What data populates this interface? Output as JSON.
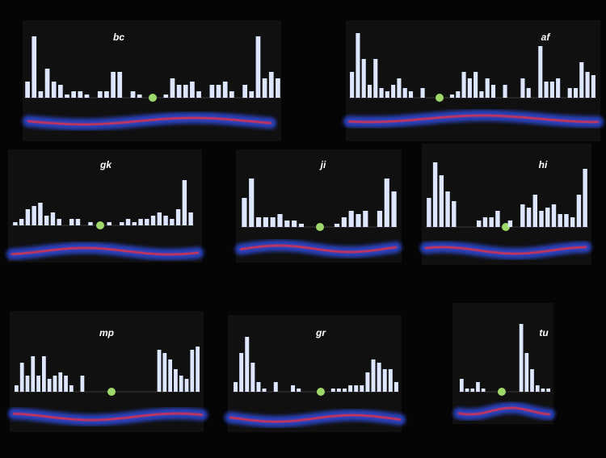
{
  "chart_data": [
    {
      "type": "bar",
      "title": "bc",
      "color": "#dde6ff",
      "values": [
        2.5,
        9.5,
        1,
        4.5,
        2.5,
        2,
        0.5,
        1,
        1,
        0.5,
        0,
        1,
        1,
        4,
        4,
        0,
        1,
        0.5,
        0,
        0,
        0,
        0.5,
        3,
        2,
        2,
        2.5,
        1,
        0,
        2,
        2,
        2.5,
        1,
        0,
        2,
        1,
        9.5,
        3,
        4,
        3
      ]
    },
    {
      "type": "bar",
      "title": "af",
      "color": "#dde6ff",
      "values": [
        4,
        10,
        6,
        2,
        6,
        1.5,
        1,
        2,
        3,
        1.5,
        1,
        0,
        1.5,
        0,
        0,
        0,
        0,
        0.5,
        1,
        4,
        3,
        4,
        1,
        3,
        2,
        0,
        2,
        0,
        0,
        3,
        1.5,
        0,
        8,
        2.5,
        2.5,
        3,
        0,
        1.5,
        1.5,
        5.5,
        4,
        3.5
      ]
    },
    {
      "type": "bar",
      "title": "gk",
      "color": "#dde6ff",
      "values": [
        0.5,
        1,
        2.5,
        3,
        3.5,
        1.5,
        2,
        1,
        0,
        1,
        1,
        0,
        0.5,
        0,
        0,
        0.5,
        0,
        0.5,
        1,
        0.5,
        1,
        1,
        1.5,
        2,
        1.5,
        1,
        2.5,
        7,
        2
      ]
    },
    {
      "type": "bar",
      "title": "ji",
      "color": "#dde6ff",
      "values": [
        4.5,
        7.5,
        1.5,
        1.5,
        1.5,
        2,
        1,
        1,
        0.5,
        0,
        0,
        0,
        0,
        0.5,
        1.5,
        2.5,
        2,
        2.5,
        0,
        2.5,
        7.5,
        5.5
      ]
    },
    {
      "type": "bar",
      "title": "hi",
      "color": "#dde6ff",
      "values": [
        4.5,
        10,
        8,
        5.5,
        4,
        0,
        0,
        0,
        1,
        1.5,
        1.5,
        2.5,
        0,
        1,
        0,
        3.5,
        3,
        5,
        2.5,
        3,
        3.5,
        2,
        2,
        1.5,
        5,
        9
      ]
    },
    {
      "type": "bar",
      "title": "mp",
      "color": "#dde6ff",
      "values": [
        1,
        4.5,
        2.5,
        5.5,
        2.5,
        5.5,
        2,
        2.5,
        3,
        2.5,
        1,
        0,
        2.5,
        0,
        0,
        0,
        0,
        0,
        0,
        0,
        0,
        0,
        0,
        0,
        0,
        0,
        6.5,
        6,
        5,
        3.5,
        2.5,
        2,
        6.5,
        7
      ]
    },
    {
      "type": "bar",
      "title": "gr",
      "color": "#dde6ff",
      "values": [
        1.5,
        6,
        8.5,
        4.5,
        1.5,
        0.5,
        0,
        1.5,
        0,
        0,
        1,
        0.5,
        0,
        0,
        0,
        0,
        0,
        0.5,
        0.5,
        0.5,
        1,
        1,
        1,
        3,
        5,
        4.5,
        3.5,
        3.5,
        1.5
      ]
    },
    {
      "type": "bar",
      "title": "tu",
      "color": "#dde6ff",
      "values": [
        2,
        0.5,
        0.5,
        1.5,
        0.5,
        0,
        0,
        0,
        0,
        0,
        0,
        10.5,
        6,
        3.5,
        1,
        0.5,
        0.5
      ]
    }
  ]
}
